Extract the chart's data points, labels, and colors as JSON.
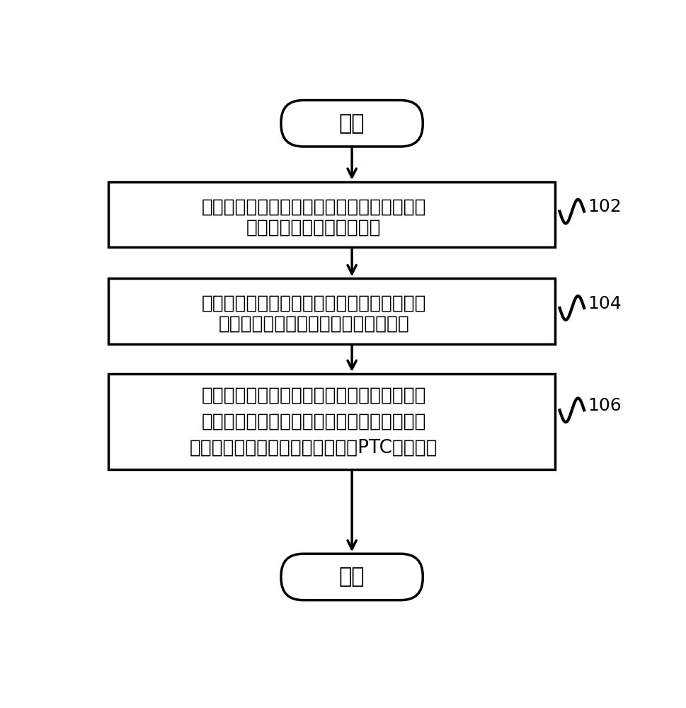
{
  "bg_color": "#ffffff",
  "line_color": "#000000",
  "text_color": "#000000",
  "start_text": "开始",
  "end_text": "结束",
  "box1_line1": "通过至少一个采样模块获取所述空调器的至少",
  "box1_line2": "一个性能参数的当前采样值",
  "box2_line1": "将所述至少一个性能参数的所述当前采样值输",
  "box2_line2": "入至所述空调器的软件数字模型模块中",
  "box3_line1": "根据所述至少一个性能参数的所述当前采样值",
  "box3_line2": "和所述软件数字模型模块中预置的功率计算数",
  "box3_line3": "字模型计算得到所述空调器的当前PTC发热功率",
  "label1": "102",
  "label2": "104",
  "label3": "106",
  "font_size_box": 19,
  "font_size_label": 18,
  "font_size_terminal": 22,
  "lw": 2.5
}
